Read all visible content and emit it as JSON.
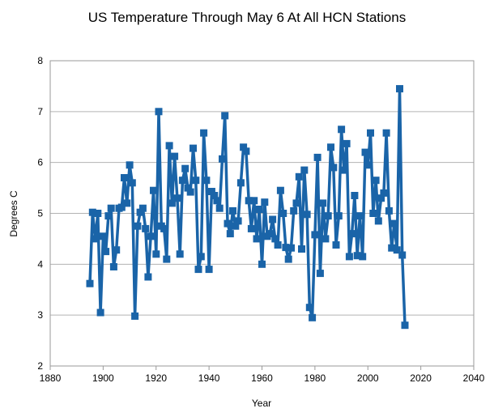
{
  "chart_data": {
    "type": "line",
    "title": "US Temperature Through May 6 At All HCN Stations",
    "xlabel": "Year",
    "ylabel": "Degrees C",
    "xlim": [
      1880,
      2040
    ],
    "ylim": [
      2,
      8
    ],
    "xticks": [
      1880,
      1900,
      1920,
      1940,
      1960,
      1980,
      2000,
      2020,
      2040
    ],
    "yticks": [
      2,
      3,
      4,
      5,
      6,
      7,
      8
    ],
    "grid": "horizontal",
    "legend": "none",
    "series_color": "#1a64a8",
    "x": [
      1895,
      1896,
      1897,
      1898,
      1899,
      1900,
      1901,
      1902,
      1903,
      1904,
      1905,
      1906,
      1907,
      1908,
      1909,
      1910,
      1911,
      1912,
      1913,
      1914,
      1915,
      1916,
      1917,
      1918,
      1919,
      1920,
      1921,
      1922,
      1923,
      1924,
      1925,
      1926,
      1927,
      1928,
      1929,
      1930,
      1931,
      1932,
      1933,
      1934,
      1935,
      1936,
      1937,
      1938,
      1939,
      1940,
      1941,
      1942,
      1943,
      1944,
      1945,
      1946,
      1947,
      1948,
      1949,
      1950,
      1951,
      1952,
      1953,
      1954,
      1955,
      1956,
      1957,
      1958,
      1959,
      1960,
      1961,
      1962,
      1963,
      1964,
      1965,
      1966,
      1967,
      1968,
      1969,
      1970,
      1971,
      1972,
      1973,
      1974,
      1975,
      1976,
      1977,
      1978,
      1979,
      1980,
      1981,
      1982,
      1983,
      1984,
      1985,
      1986,
      1987,
      1988,
      1989,
      1990,
      1991,
      1992,
      1993,
      1994,
      1995,
      1996,
      1997,
      1998,
      1999,
      2000,
      2001,
      2002,
      2003,
      2004,
      2005,
      2006,
      2007,
      2008,
      2009,
      2010,
      2011,
      2012,
      2013,
      2014
    ],
    "y": [
      3.62,
      5.02,
      4.5,
      5.0,
      3.05,
      4.55,
      4.25,
      4.95,
      5.1,
      3.95,
      4.28,
      5.1,
      5.12,
      5.7,
      5.2,
      5.95,
      5.6,
      2.98,
      4.75,
      5.02,
      5.1,
      4.7,
      3.75,
      4.55,
      5.45,
      4.2,
      7.0,
      4.75,
      4.7,
      4.1,
      6.33,
      5.2,
      6.12,
      5.3,
      4.2,
      5.65,
      5.88,
      5.5,
      5.42,
      6.28,
      5.65,
      3.9,
      4.15,
      6.58,
      5.65,
      3.9,
      5.43,
      5.35,
      5.25,
      5.1,
      6.07,
      6.92,
      4.8,
      4.6,
      5.05,
      4.75,
      4.85,
      5.6,
      6.3,
      6.22,
      5.25,
      4.7,
      5.25,
      4.5,
      5.08,
      4.0,
      5.22,
      4.55,
      4.6,
      4.88,
      4.5,
      4.38,
      5.45,
      5.0,
      4.33,
      4.1,
      4.32,
      5.05,
      5.2,
      5.72,
      4.3,
      5.85,
      4.98,
      3.15,
      2.95,
      4.58,
      6.1,
      3.82,
      5.2,
      4.5,
      4.95,
      6.3,
      5.9,
      4.38,
      4.95,
      6.65,
      5.85,
      6.37,
      4.15,
      4.6,
      5.35,
      4.17,
      4.95,
      4.15,
      6.2,
      5.95,
      6.58,
      5.0,
      5.65,
      4.85,
      5.3,
      5.4,
      6.58,
      5.05,
      4.32,
      4.8,
      4.28,
      7.45,
      4.18,
      2.8
    ]
  }
}
